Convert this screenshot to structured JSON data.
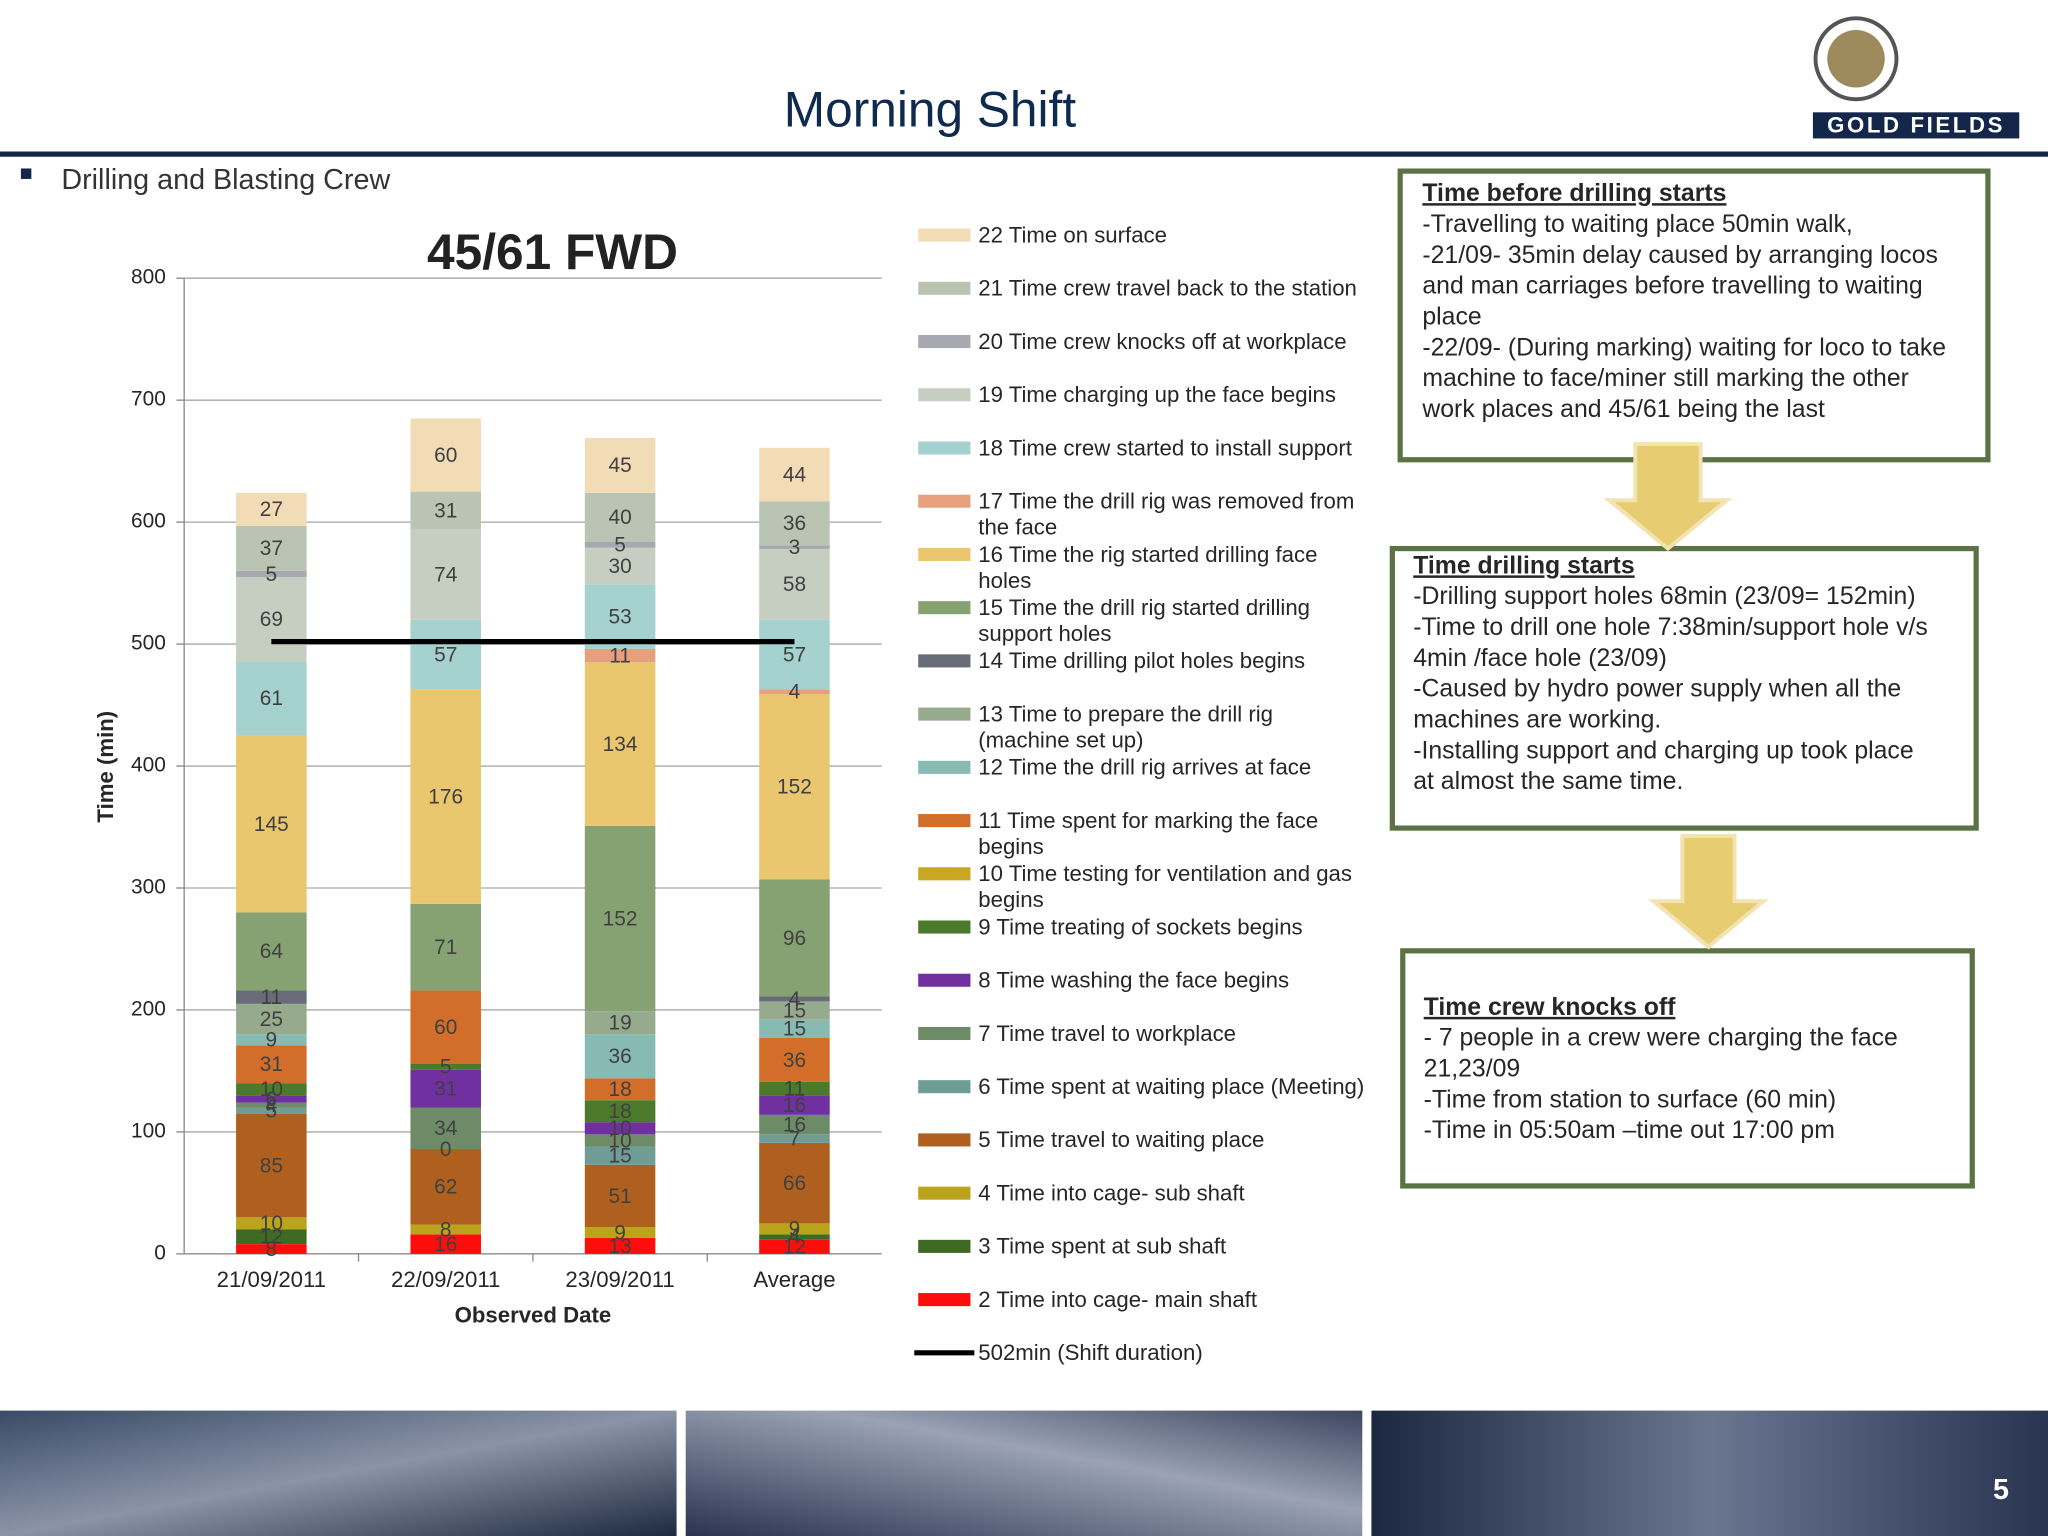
{
  "header": {
    "title": "Morning Shift",
    "bullet": "Drilling and Blasting Crew",
    "logo": "Gold Fields",
    "page_number": "5"
  },
  "chart_data": {
    "type": "stacked_bar",
    "title": "45/61 FWD",
    "x_label": "Observed Date",
    "y_label": "Time (min)",
    "categories": [
      "21/09/2011",
      "22/09/2011",
      "23/09/2011",
      "Average"
    ],
    "ylim": [
      0,
      800
    ],
    "yticks": [
      0,
      100,
      200,
      300,
      400,
      500,
      600,
      700,
      800
    ],
    "grid": true,
    "legend": "right",
    "series": [
      {
        "name": "2 Time into cage- main shaft",
        "color": "#ff0d0d",
        "values": [
          8,
          16,
          13,
          12
        ]
      },
      {
        "name": "3 Time spent at sub shaft",
        "color": "#3e6a24",
        "values": [
          12,
          null,
          null,
          4
        ]
      },
      {
        "name": "4 Time into cage- sub shaft",
        "color": "#bba31c",
        "values": [
          10,
          8,
          9,
          9
        ]
      },
      {
        "name": "5 Time travel to waiting place",
        "color": "#b0601e",
        "values": [
          85,
          62,
          51,
          66
        ]
      },
      {
        "name": "6 Time spent at waiting place (Meeting)",
        "color": "#6f9c94",
        "values": [
          5,
          0,
          15,
          7
        ]
      },
      {
        "name": "7 Time travel to workplace",
        "color": "#6e8b68",
        "values": [
          4,
          34,
          10,
          16
        ]
      },
      {
        "name": "8 Time washing the face begins",
        "color": "#7030a0",
        "values": [
          6,
          31,
          10,
          16
        ]
      },
      {
        "name": "9 Time treating of sockets begins",
        "color": "#4a7a2a",
        "values": [
          10,
          5,
          18,
          11
        ]
      },
      {
        "name": "10 Time testing for ventilation and gas begins",
        "color": "#c8a820",
        "values": [
          null,
          null,
          null,
          null
        ]
      },
      {
        "name": "11 Time spent for marking the face begins",
        "color": "#d26e2a",
        "values": [
          31,
          60,
          18,
          36
        ]
      },
      {
        "name": "12 Time the drill rig arrives at face",
        "color": "#86bab2",
        "values": [
          9,
          null,
          36,
          15
        ]
      },
      {
        "name": "13 Time to prepare the drill rig (machine set up)",
        "color": "#96aa8e",
        "values": [
          25,
          null,
          19,
          15
        ]
      },
      {
        "name": "14 Time drilling pilot holes begins",
        "color": "#686c78",
        "values": [
          11,
          null,
          null,
          4
        ]
      },
      {
        "name": "15 Time the drill rig started drilling support holes",
        "color": "#86a272",
        "values": [
          64,
          71,
          152,
          96
        ]
      },
      {
        "name": "16 Time the rig started drilling face holes",
        "color": "#eac66e",
        "values": [
          145,
          176,
          134,
          152
        ]
      },
      {
        "name": "17 Time the drill rig was removed from the face",
        "color": "#e6a07e",
        "values": [
          null,
          null,
          11,
          4
        ]
      },
      {
        "name": "18 Time crew started to install support",
        "color": "#a5d2ce",
        "values": [
          61,
          57,
          53,
          57
        ]
      },
      {
        "name": "19 Time charging up the face begins",
        "color": "#c6cec2",
        "values": [
          69,
          74,
          30,
          58
        ]
      },
      {
        "name": "20 Time crew knocks off at workplace",
        "color": "#a8a8b0",
        "values": [
          5,
          null,
          5,
          3
        ]
      },
      {
        "name": "21 Time crew travel back to the station",
        "color": "#b9c5b2",
        "values": [
          37,
          31,
          40,
          36
        ]
      },
      {
        "name": "22 Time on surface",
        "color": "#f2dcb6",
        "values": [
          27,
          60,
          45,
          44
        ]
      }
    ],
    "reference_line": {
      "name": "502min (Shift duration)",
      "value": 502,
      "color": "#000000"
    }
  },
  "boxes": [
    {
      "title": "Time before drilling starts",
      "lines": [
        "-Travelling to waiting place 50min walk,",
        "-21/09- 35min delay caused by arranging locos",
        "and man carriages before travelling to waiting",
        "place",
        "-22/09- (During marking) waiting for loco to take",
        "machine to face/miner still marking the other",
        "work places and 45/61 being the last"
      ]
    },
    {
      "title": "Time drilling starts",
      "lines": [
        "-Drilling support holes 68min (23/09= 152min)",
        "-Time to drill one hole 7:38min/support hole v/s",
        "4min /face hole (23/09)",
        "-Caused by hydro power supply when all the",
        "machines are working.",
        "-Installing support and charging up took place",
        "at almost the same time."
      ]
    },
    {
      "title": "Time crew knocks off",
      "lines": [
        "- 7 people in a crew were charging the face",
        "21,23/09",
        "-Time from station to surface (60 min)",
        "-Time in 05:50am –time out 17:00 pm"
      ]
    }
  ]
}
